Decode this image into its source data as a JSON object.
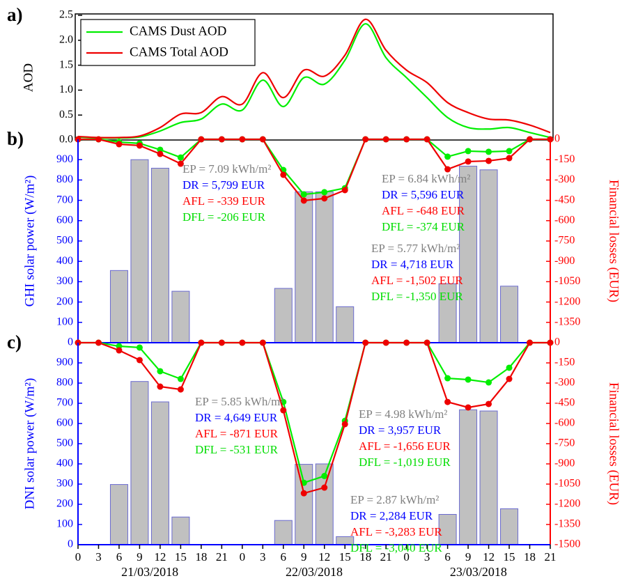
{
  "chart_data": [
    {
      "type": "line",
      "label": "a)",
      "ylabel": "AOD",
      "ycolor": "#000000",
      "x": [
        0,
        3,
        6,
        9,
        12,
        15,
        18,
        21,
        24,
        27,
        30,
        33,
        36,
        39,
        42,
        45,
        48,
        51,
        54,
        57,
        60,
        63,
        66,
        69
      ],
      "xlim": [
        0,
        69
      ],
      "ylim": [
        0,
        2.5
      ],
      "yticks": [
        {
          "value": 0,
          "label": "0.0"
        },
        0.5,
        {
          "value": 1,
          "label": "1.0"
        },
        1.5,
        {
          "value": 2,
          "label": "2.0"
        },
        2.5
      ],
      "legend": "upper left",
      "series": [
        {
          "name": "CAMS Dust AOD",
          "color": "#00ee00",
          "values": [
            0.06,
            0.04,
            0.04,
            0.06,
            0.18,
            0.35,
            0.42,
            0.72,
            0.6,
            1.2,
            0.67,
            1.25,
            1.12,
            1.6,
            2.33,
            1.65,
            1.25,
            0.85,
            0.45,
            0.25,
            0.22,
            0.25,
            0.15,
            0.05
          ]
        },
        {
          "name": "CAMS Total AOD",
          "color": "#ee0000",
          "values": [
            0.07,
            0.05,
            0.05,
            0.08,
            0.25,
            0.52,
            0.55,
            0.87,
            0.72,
            1.35,
            0.85,
            1.4,
            1.28,
            1.7,
            2.42,
            1.8,
            1.4,
            1.15,
            0.75,
            0.55,
            0.42,
            0.4,
            0.3,
            0.15
          ]
        }
      ]
    },
    {
      "type": "bar",
      "label": "b)",
      "ylabel": "GHI solar power (W/m²)",
      "y2label": "Financial losses (EUR)",
      "ycolor": "#0000ff",
      "y2color": "#ff0000",
      "x": [
        0,
        3,
        6,
        9,
        12,
        15,
        18,
        21,
        24,
        27,
        30,
        33,
        36,
        39,
        42,
        45,
        48,
        51,
        54,
        57,
        60,
        63,
        66,
        69
      ],
      "xlim": [
        0,
        69
      ],
      "ylim": [
        0,
        1000
      ],
      "yticks": [
        0,
        100,
        200,
        300,
        400,
        500,
        600,
        700,
        800,
        900
      ],
      "y2lim": [
        -1500,
        0
      ],
      "y2ticks": [
        0,
        -150,
        -300,
        -450,
        -600,
        -750,
        -900,
        -1050,
        -1200,
        -1350
      ],
      "series": [
        {
          "color": "#c0c0c0",
          "values": [
            0,
            0,
            355,
            900,
            858,
            253,
            0,
            0,
            0,
            0,
            267,
            742,
            742,
            177,
            0,
            0,
            0,
            0,
            290,
            868,
            850,
            278,
            0,
            0
          ]
        },
        {
          "color": "#00ee00",
          "axis": "y2",
          "values": [
            0,
            0,
            -20,
            -30,
            -77,
            -134,
            0,
            0,
            0,
            0,
            -226,
            -406,
            -390,
            -360,
            0,
            0,
            0,
            0,
            -128,
            -87,
            -92,
            -87,
            0,
            0
          ]
        },
        {
          "color": "#ee0000",
          "axis": "y2",
          "values": [
            0,
            0,
            -36,
            -46,
            -108,
            -180,
            0,
            0,
            0,
            0,
            -262,
            -452,
            -436,
            -375,
            0,
            0,
            0,
            0,
            -221,
            -164,
            -159,
            -139,
            0,
            0
          ]
        }
      ],
      "annotation_colors": [
        "#808080",
        "#0000ff",
        "#ff0000",
        "#00dd00"
      ],
      "annotations": [
        [
          "EP = 7.09 kWh/m²",
          "DR = 5,799 EUR",
          "AFL = -339 EUR",
          "DFL = -206 EUR"
        ],
        [
          "EP = 6.84 kWh/m²",
          "DR = 5,596 EUR",
          "AFL = -648 EUR",
          "DFL = -374 EUR"
        ],
        [
          "EP = 5.77 kWh/m²",
          "DR = 4,718 EUR",
          "AFL = -1,502 EUR",
          "DFL = -1,350 EUR"
        ]
      ]
    },
    {
      "type": "bar",
      "label": "c)",
      "ylabel": "DNI solar power (W/m²)",
      "y2label": "Financial losses (EUR)",
      "ycolor": "#0000ff",
      "y2color": "#ff0000",
      "x": [
        0,
        3,
        6,
        9,
        12,
        15,
        18,
        21,
        24,
        27,
        30,
        33,
        36,
        39,
        42,
        45,
        48,
        51,
        54,
        57,
        60,
        63,
        66,
        69
      ],
      "xlim": [
        0,
        69
      ],
      "ylim": [
        0,
        1000
      ],
      "yticks": [
        0,
        100,
        200,
        300,
        400,
        500,
        600,
        700,
        800,
        900
      ],
      "y2lim": [
        -1500,
        0
      ],
      "y2ticks": [
        0,
        -150,
        -300,
        -450,
        -600,
        -750,
        -900,
        -1050,
        -1200,
        -1350,
        -1500
      ],
      "xticks": [
        {
          "value": 0,
          "label": "0"
        },
        {
          "value": 3,
          "label": "3"
        },
        {
          "value": 6,
          "label": "6"
        },
        {
          "value": 9,
          "label": "9"
        },
        {
          "value": 12,
          "label": "12"
        },
        {
          "value": 15,
          "label": "15"
        },
        {
          "value": 18,
          "label": "18"
        },
        {
          "value": 21,
          "label": "21"
        },
        {
          "value": 24,
          "label": "0"
        },
        {
          "value": 27,
          "label": "3"
        },
        {
          "value": 30,
          "label": "6"
        },
        {
          "value": 33,
          "label": "9"
        },
        {
          "value": 36,
          "label": "12"
        },
        {
          "value": 39,
          "label": "15"
        },
        {
          "value": 42,
          "label": "18"
        },
        {
          "value": 45,
          "label": "21"
        },
        {
          "value": 48,
          "label": "0"
        },
        {
          "value": 51,
          "label": "3"
        },
        {
          "value": 54,
          "label": "6"
        },
        {
          "value": 57,
          "label": "9"
        },
        {
          "value": 60,
          "label": "12"
        },
        {
          "value": 63,
          "label": "15"
        },
        {
          "value": 66,
          "label": "18"
        },
        {
          "value": 69,
          "label": "21"
        }
      ],
      "dates": [
        "21/03/2018",
        "22/03/2018",
        "23/03/2018"
      ],
      "series": [
        {
          "color": "#c0c0c0",
          "values": [
            0,
            0,
            298,
            808,
            707,
            137,
            0,
            0,
            0,
            0,
            120,
            398,
            400,
            40,
            0,
            0,
            0,
            0,
            150,
            668,
            662,
            178,
            0,
            0
          ]
        },
        {
          "color": "#00ee00",
          "axis": "y2",
          "values": [
            0,
            0,
            -26,
            -36,
            -212,
            -269,
            0,
            0,
            0,
            0,
            -440,
            -1040,
            -990,
            -580,
            0,
            0,
            0,
            0,
            -264,
            -274,
            -295,
            -186,
            0,
            0
          ]
        },
        {
          "color": "#ee0000",
          "axis": "y2",
          "values": [
            0,
            0,
            -57,
            -129,
            -326,
            -347,
            0,
            0,
            0,
            0,
            -502,
            -1118,
            -1076,
            -605,
            0,
            0,
            0,
            0,
            -440,
            -481,
            -455,
            -269,
            0,
            0
          ]
        }
      ],
      "annotation_colors": [
        "#808080",
        "#0000ff",
        "#ff0000",
        "#00dd00"
      ],
      "annotations": [
        [
          "EP = 5.85 kWh/m²",
          "DR = 4,649 EUR",
          "AFL = -871 EUR",
          "DFL = -531 EUR"
        ],
        [
          "EP = 4.98 kWh/m²",
          "DR = 3,957 EUR",
          "AFL = -1,656 EUR",
          "DFL = -1,019 EUR"
        ],
        [
          "EP = 2.87 kWh/m²",
          "DR = 2,284 EUR",
          "AFL = -3,283 EUR",
          "DFL = -3,040 EUR"
        ]
      ]
    }
  ]
}
